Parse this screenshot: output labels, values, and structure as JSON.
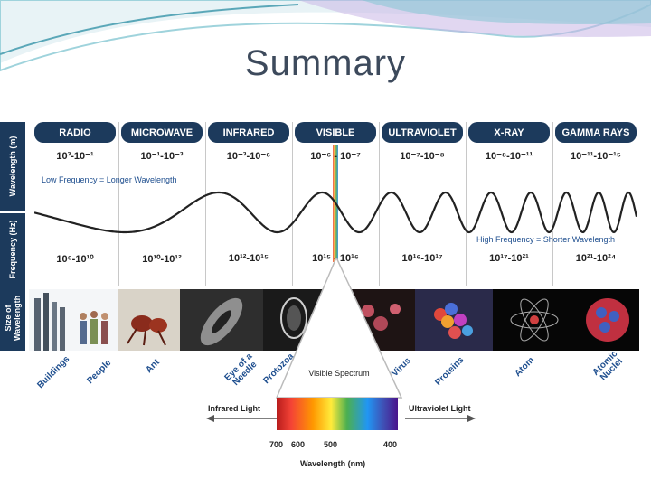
{
  "title": "Summary",
  "side_labels": {
    "wavelength": "Wavelength (m)",
    "frequency": "Frequency (Hz)",
    "size": "Size of\nWavelength"
  },
  "bands": [
    {
      "name": "RADIO",
      "wavelength": "10³-10⁻¹",
      "frequency": "10⁶-10¹⁰"
    },
    {
      "name": "MICROWAVE",
      "wavelength": "10⁻¹-10⁻³",
      "frequency": "10¹⁰-10¹²"
    },
    {
      "name": "INFRARED",
      "wavelength": "10⁻³-10⁻⁶",
      "frequency": "10¹²-10¹⁵"
    },
    {
      "name": "VISIBLE",
      "wavelength": "10⁻⁶ - 10⁻⁷",
      "frequency": "10¹⁵ - 10¹⁶"
    },
    {
      "name": "ULTRAVIOLET",
      "wavelength": "10⁻⁷-10⁻⁸",
      "frequency": "10¹⁶-10¹⁷"
    },
    {
      "name": "X-RAY",
      "wavelength": "10⁻⁸-10⁻¹¹",
      "frequency": "10¹⁷-10²¹"
    },
    {
      "name": "GAMMA RAYS",
      "wavelength": "10⁻¹¹-10⁻¹⁵",
      "frequency": "10²¹-10²⁴"
    }
  ],
  "notes": {
    "low": "Low Frequency = Longer Wavelength",
    "high": "High Frequency = Shorter Wavelength"
  },
  "size_examples": [
    "Buildings",
    "People",
    "Ant",
    "Eye of a Needle",
    "Protozoa",
    "Virus",
    "Proteins",
    "Atom",
    "Atomic Nuclei"
  ],
  "spectrum": {
    "title": "Visible Spectrum",
    "left": "Infrared Light",
    "right": "Ultraviolet Light",
    "ticks": [
      "700",
      "600",
      "500",
      "400"
    ],
    "axis": "Wavelength (nm)"
  },
  "colors": {
    "navy": "#1c3a5c",
    "blue_text": "#1f4f8f",
    "wave": "#222222"
  }
}
